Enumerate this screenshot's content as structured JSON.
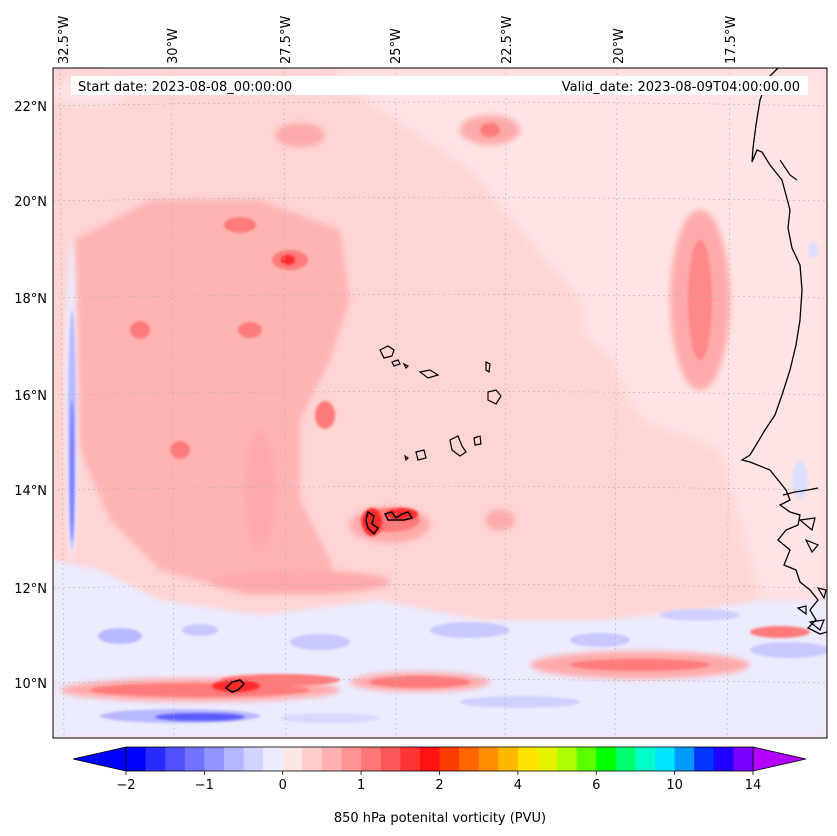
{
  "header": {
    "start_date": "Start date: 2023-08-08_00:00:00",
    "valid_date": "Valid_date: 2023-08-09T04:00:00.00"
  },
  "axes": {
    "lon_labels": [
      "32.5°W",
      "30°W",
      "27.5°W",
      "25°W",
      "22.5°W",
      "20°W",
      "17.5°W"
    ],
    "lat_labels": [
      "22°N",
      "20°N",
      "18°N",
      "16°N",
      "14°N",
      "12°N",
      "10°N"
    ]
  },
  "colorbar": {
    "label": "850 hPa potenital vorticity (PVU)",
    "tick_labels": [
      "−2",
      "−1",
      "0",
      "1",
      "2",
      "4",
      "6",
      "10",
      "14"
    ],
    "colors": [
      "#0000ff",
      "#2a2aff",
      "#5050ff",
      "#7272ff",
      "#9494ff",
      "#b4b4ff",
      "#d2d2ff",
      "#ededff",
      "#ffe6e6",
      "#ffcccc",
      "#ffb2b2",
      "#ff9494",
      "#ff7777",
      "#ff5757",
      "#ff3535",
      "#ff1313",
      "#ff3d00",
      "#ff6600",
      "#ff8f00",
      "#ffb800",
      "#ffe100",
      "#e6f200",
      "#adff00",
      "#5cff00",
      "#00ff00",
      "#00ff6e",
      "#00ffc8",
      "#00e6ff",
      "#0099ff",
      "#0033ff",
      "#2200ff",
      "#7a00ff"
    ],
    "extend_min_color": "#0000ff",
    "extend_max_color": "#b400ff"
  },
  "colors": {
    "background_field": "#ffd4d4",
    "light_field": "#ffe4e4",
    "positive_medium": "#ffaaaa",
    "positive_strong": "#ff7a7a",
    "positive_max": "#ff2a2a",
    "negative_light": "#ececff",
    "negative_medium": "#b8b8ff",
    "negative_strong": "#5a5aff",
    "coastline": "#000000"
  }
}
